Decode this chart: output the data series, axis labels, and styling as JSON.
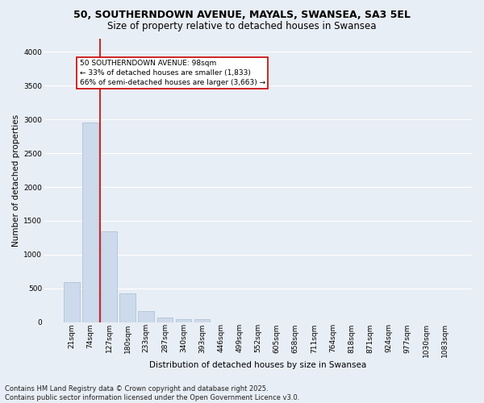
{
  "title_line1": "50, SOUTHERNDOWN AVENUE, MAYALS, SWANSEA, SA3 5EL",
  "title_line2": "Size of property relative to detached houses in Swansea",
  "xlabel": "Distribution of detached houses by size in Swansea",
  "ylabel": "Number of detached properties",
  "categories": [
    "21sqm",
    "74sqm",
    "127sqm",
    "180sqm",
    "233sqm",
    "287sqm",
    "340sqm",
    "393sqm",
    "446sqm",
    "499sqm",
    "552sqm",
    "605sqm",
    "658sqm",
    "711sqm",
    "764sqm",
    "818sqm",
    "871sqm",
    "924sqm",
    "977sqm",
    "1030sqm",
    "1083sqm"
  ],
  "values": [
    590,
    2960,
    1340,
    430,
    165,
    75,
    45,
    45,
    0,
    0,
    0,
    0,
    0,
    0,
    0,
    0,
    0,
    0,
    0,
    0,
    0
  ],
  "bar_color": "#ccdaeb",
  "bar_edge_color": "#a8bdd4",
  "vline_color": "#cc0000",
  "annotation_text": "50 SOUTHERNDOWN AVENUE: 98sqm\n← 33% of detached houses are smaller (1,833)\n66% of semi-detached houses are larger (3,663) →",
  "annotation_box_facecolor": "#ffffff",
  "annotation_box_edgecolor": "#cc0000",
  "ylim": [
    0,
    4200
  ],
  "yticks": [
    0,
    500,
    1000,
    1500,
    2000,
    2500,
    3000,
    3500,
    4000
  ],
  "footer_line1": "Contains HM Land Registry data © Crown copyright and database right 2025.",
  "footer_line2": "Contains public sector information licensed under the Open Government Licence v3.0.",
  "bg_color": "#e8eef5",
  "plot_bg_color": "#e8eef5",
  "grid_color": "#ffffff",
  "title_fontsize": 9,
  "subtitle_fontsize": 8.5,
  "axis_label_fontsize": 7.5,
  "tick_fontsize": 6.5,
  "annot_fontsize": 6.5,
  "footer_fontsize": 6
}
